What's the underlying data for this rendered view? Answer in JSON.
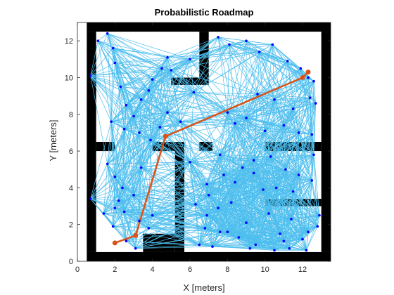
{
  "chart_data": {
    "type": "scatter",
    "title": "Probabilistic Roadmap",
    "xlabel": "X [meters]",
    "ylabel": "Y [meters]",
    "xlim": [
      0,
      13.5
    ],
    "ylim": [
      0,
      13
    ],
    "xticks": [
      0,
      2,
      4,
      6,
      8,
      10,
      12
    ],
    "yticks": [
      0,
      2,
      4,
      6,
      8,
      10,
      12
    ],
    "grid": false,
    "legend": "none",
    "colors": {
      "obstacle": "#000000",
      "free_space": "#ffffff",
      "edges": "#4dbeee",
      "nodes": "#0000ff",
      "path": "#d95319",
      "axes": "#262626"
    },
    "obstacles": [
      {
        "x": [
          0.5,
          13.5
        ],
        "y": [
          12.5,
          13
        ]
      },
      {
        "x": [
          0.5,
          13.5
        ],
        "y": [
          0,
          0.5
        ]
      },
      {
        "x": [
          0.5,
          1
        ],
        "y": [
          0.5,
          12.5
        ]
      },
      {
        "x": [
          13,
          13.5
        ],
        "y": [
          0.5,
          12.5
        ]
      },
      {
        "x": [
          6.5,
          7
        ],
        "y": [
          10,
          12.5
        ]
      },
      {
        "x": [
          5,
          7
        ],
        "y": [
          9.6,
          10
        ]
      },
      {
        "x": [
          1,
          2
        ],
        "y": [
          6,
          6.5
        ]
      },
      {
        "x": [
          4,
          5.2
        ],
        "y": [
          6,
          6.5
        ]
      },
      {
        "x": [
          6.5,
          7.2
        ],
        "y": [
          6,
          6.5
        ]
      },
      {
        "x": [
          10,
          13
        ],
        "y": [
          6,
          6.5
        ]
      },
      {
        "x": [
          5.2,
          5.7
        ],
        "y": [
          0.5,
          6.5
        ]
      },
      {
        "x": [
          3.5,
          5.2
        ],
        "y": [
          0.5,
          1.5
        ]
      },
      {
        "x": [
          10,
          13
        ],
        "y": [
          3,
          3.4
        ]
      }
    ],
    "nodes": {
      "x": [
        0.7,
        1.1,
        1.6,
        1.9,
        2.0,
        2.3,
        1.8,
        2.6,
        3.0,
        3.4,
        3.8,
        4.0,
        4.5,
        4.8,
        5.0,
        6.0,
        2.5,
        3.3,
        3.9,
        4.4,
        4.8,
        5.5,
        6.2,
        7.5,
        8.1,
        9.0,
        9.7,
        10.4,
        11.2,
        11.9,
        12.3,
        12.6,
        9.6,
        10.5,
        11.5,
        12.4,
        12.7,
        8.0,
        8.4,
        9.0,
        10.0,
        11.0,
        11.8,
        12.5,
        1.6,
        2.0,
        2.4,
        3.0,
        3.4,
        2.5,
        3.3,
        3.8,
        2.2,
        2.0,
        1.9,
        0.7,
        1.4,
        2.6,
        3.1,
        4.0,
        6.0,
        6.3,
        7.0,
        7.8,
        8.4,
        8.8,
        9.4,
        9.9,
        6.9,
        7.5,
        8.2,
        9.0,
        6.8,
        7.6,
        8.6,
        9.5,
        6.5,
        7.2,
        8.0,
        9.2,
        6.9,
        7.6,
        9.4,
        10.3,
        11.1,
        11.8,
        12.6,
        10.6,
        11.5,
        12.5,
        10.2,
        11.4,
        12.9,
        10.8,
        12.0,
        12.8,
        10.5,
        11.3,
        12.2,
        11.0,
        12.3
      ],
      "y": [
        10.1,
        12.0,
        12.4,
        11.6,
        10.8,
        9.5,
        7.6,
        8.5,
        7.9,
        8.8,
        9.3,
        9.9,
        10.5,
        11.1,
        10.4,
        11.0,
        7.2,
        7.0,
        6.6,
        7.3,
        8.1,
        7.6,
        9.2,
        12.2,
        11.8,
        12.0,
        11.4,
        11.8,
        10.9,
        10.5,
        10.0,
        9.8,
        9.1,
        8.8,
        8.3,
        8.9,
        8.6,
        8.1,
        7.5,
        7.8,
        7.1,
        7.4,
        7.0,
        6.9,
        5.3,
        4.6,
        4.0,
        3.6,
        5.1,
        2.7,
        2.2,
        1.8,
        3.3,
        2.9,
        1.9,
        3.4,
        2.6,
        1.1,
        0.7,
        2.5,
        5.4,
        3.1,
        3.6,
        4.7,
        4.3,
        5.1,
        4.8,
        3.9,
        2.5,
        2.9,
        3.2,
        2.1,
        1.8,
        1.6,
        1.3,
        0.9,
        0.9,
        0.8,
        1.6,
        0.7,
        4.2,
        5.8,
        5.5,
        5.7,
        5.0,
        4.7,
        5.8,
        4.0,
        3.8,
        4.4,
        2.6,
        2.3,
        2.5,
        1.5,
        1.2,
        1.9,
        0.6,
        0.7,
        0.6,
        1.1,
        1.6
      ]
    },
    "path": {
      "x": [
        2.0,
        3.1,
        4.7,
        12.0,
        12.3
      ],
      "y": [
        1.0,
        1.4,
        6.8,
        10.0,
        10.3
      ]
    }
  }
}
